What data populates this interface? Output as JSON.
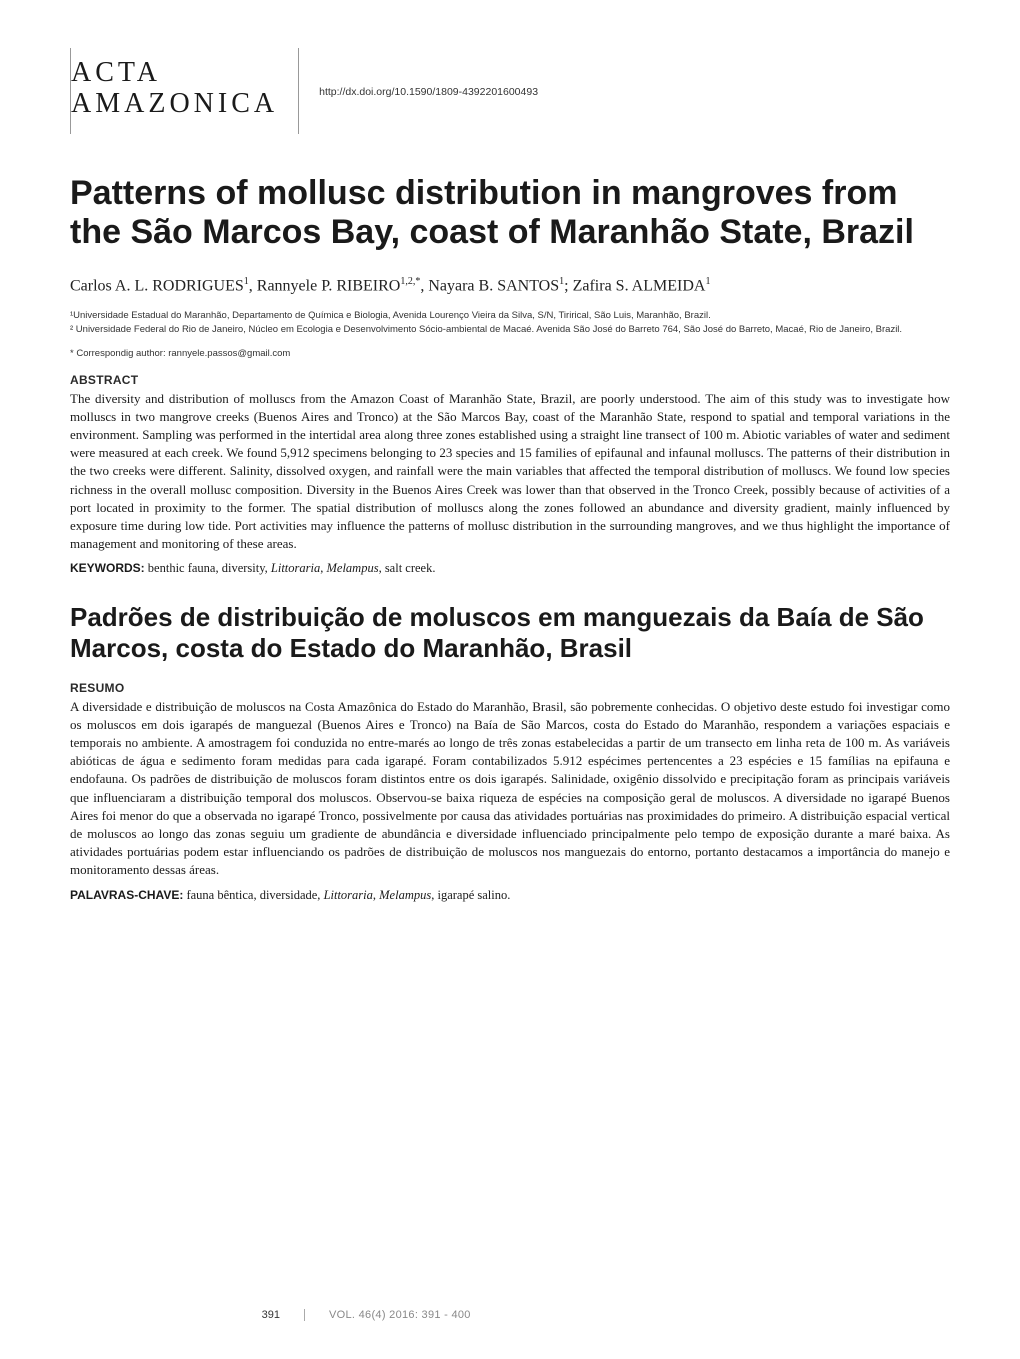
{
  "journal": {
    "line1": "ACTA",
    "line2": "AMAZONICA"
  },
  "doi": "http://dx.doi.org/10.1590/1809-4392201600493",
  "title_en": "Patterns of mollusc distribution in mangroves from the São Marcos Bay, coast of Maranhão State, Brazil",
  "authors_html": "Carlos A. L. RODRIGUES<sup>1</sup>, Rannyele P. RIBEIRO<sup>1,2,*</sup>, Nayara B. SANTOS<sup>1</sup>; Zafira S. ALMEIDA<sup>1</sup>",
  "affiliations": [
    "¹Universidade Estadual do Maranhão, Departamento de Química e Biologia, Avenida Lourenço Vieira da Silva, S/N, Tirirical, São Luis, Maranhão, Brazil.",
    "² Universidade Federal do Rio de Janeiro, Núcleo em Ecologia e Desenvolvimento Sócio-ambiental de Macaé. Avenida São José do Barreto 764, São José do Barreto, Macaé, Rio de Janeiro, Brazil."
  ],
  "correspondence": "* Correspondig author: rannyele.passos@gmail.com",
  "abstract": {
    "label": "ABSTRACT",
    "body": "The diversity and distribution of molluscs from the Amazon Coast of Maranhão State, Brazil, are poorly understood. The aim of this study was to investigate how molluscs in two mangrove creeks (Buenos Aires and Tronco) at the São Marcos Bay, coast of the Maranhão State, respond to spatial and temporal variations in the environment. Sampling was performed in the intertidal area along three zones established using a straight line transect of 100 m. Abiotic variables of water and sediment were measured at each creek. We found 5,912 specimens belonging to 23 species and 15 families of epifaunal and infaunal molluscs. The patterns of their distribution in the two creeks were different. Salinity, dissolved oxygen, and rainfall were the main variables that affected the temporal distribution of molluscs. We found low species richness in the overall mollusc composition. Diversity in the Buenos Aires Creek was lower than that observed in the Tronco Creek, possibly because of activities of a port located in proximity to the former. The spatial distribution of molluscs along the zones followed an abundance and diversity gradient, mainly influenced by exposure time during low tide. Port activities may influence the patterns of mollusc distribution in the surrounding mangroves, and we thus highlight the importance of management and monitoring of these areas."
  },
  "keywords": {
    "label": "KEYWORDS:",
    "text_html": " benthic fauna, diversity, <i>Littoraria</i>, <i>Melampus</i>, salt creek."
  },
  "title_pt": "Padrões de distribuição de moluscos em manguezais da Baía de São Marcos, costa do Estado do Maranhão, Brasil",
  "resumo": {
    "label": "RESUMO",
    "body": "A diversidade e distribuição de moluscos na Costa Amazônica do Estado do Maranhão, Brasil, são pobremente conhecidas. O objetivo deste estudo foi investigar como os moluscos em dois igarapés de manguezal (Buenos Aires e Tronco) na Baía de São Marcos, costa do Estado do Maranhão, respondem a variações espaciais e temporais no ambiente. A amostragem foi conduzida no entre-marés ao longo de três zonas estabelecidas a partir de um transecto em linha reta de 100 m. As variáveis abióticas de água e sedimento foram medidas para cada igarapé. Foram contabilizados 5.912 espécimes pertencentes a 23 espécies e 15 famílias na epifauna e endofauna. Os padrões de distribuição de moluscos foram distintos entre os dois igarapés. Salinidade, oxigênio dissolvido e precipitação foram as principais variáveis que influenciaram a distribuição temporal dos moluscos. Observou-se baixa riqueza de espécies na composição geral de moluscos. A diversidade no igarapé Buenos Aires foi menor do que a observada no igarapé Tronco, possivelmente por causa das atividades portuárias nas proximidades do primeiro. A distribuição espacial vertical de moluscos ao longo das zonas seguiu um gradiente de abundância e diversidade influenciado principalmente pelo tempo de exposição durante a maré baixa. As atividades portuárias podem estar influenciando os padrões de distribuição de moluscos nos manguezais do entorno, portanto destacamos a importância do manejo e monitoramento dessas áreas."
  },
  "palavras": {
    "label": "PALAVRAS-CHAVE:",
    "text_html": " fauna bêntica, diversidade, <i>Littoraria</i>, <i>Melampus</i>, igarapé salino."
  },
  "footer": {
    "page": "391",
    "vol": "VOL. 46(4) 2016: 391 - 400"
  },
  "style": {
    "page_bg": "#ffffff",
    "text_color": "#1a1a1a",
    "muted_color": "#888888",
    "rule_color": "#999999",
    "title_font": "Arial, Helvetica, sans-serif",
    "body_font": "Georgia, 'Times New Roman', serif",
    "title_fontsize_pt": 26,
    "subtitle_fontsize_pt": 20,
    "body_fontsize_pt": 10,
    "label_fontsize_pt": 9
  }
}
